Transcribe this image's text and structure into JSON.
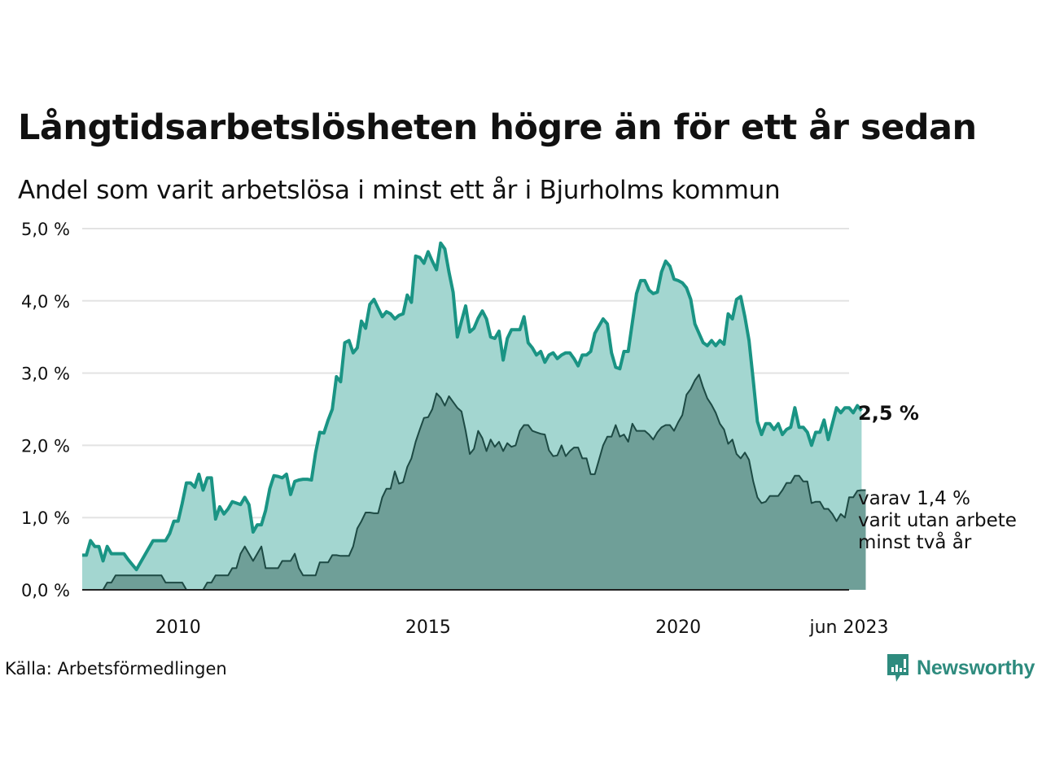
{
  "header": {
    "title": "Långtidsarbetslösheten högre än för ett år sedan",
    "subtitle": "Andel som varit arbetslösa i minst ett år i Bjurholms kommun"
  },
  "footer": {
    "source": "Källa: Arbetsförmedlingen",
    "brand": "Newsworthy",
    "brand_icon": "newsworthy-logo-icon"
  },
  "colors": {
    "series1_line": "#1a9484",
    "series1_fill": "#a3d6d0",
    "series2_line": "#1d4a44",
    "series2_fill": "#6f9f98",
    "grid": "#e3e3e3",
    "brand": "#2e8b7e"
  },
  "chart_data": {
    "type": "area",
    "title": "Långtidsarbetslösheten högre än för ett år sedan",
    "subtitle": "Andel som varit arbetslösa i minst ett år i Bjurholms kommun",
    "xlabel": "",
    "ylabel": "",
    "x_start": "2008-02",
    "x_end": "2023-06",
    "x_frequency": "monthly",
    "ylim": [
      0,
      5
    ],
    "yticks": [
      0,
      1,
      2,
      3,
      4,
      5
    ],
    "ytick_labels": [
      "0,0 %",
      "1,0 %",
      "2,0 %",
      "3,0 %",
      "4,0 %",
      "5,0 %"
    ],
    "xticks": [
      {
        "label": "2010",
        "date": "2010-01"
      },
      {
        "label": "2015",
        "date": "2015-01"
      },
      {
        "label": "2020",
        "date": "2020-01"
      },
      {
        "label": "jun 2023",
        "date": "2023-06"
      }
    ],
    "grid": true,
    "annotations": [
      {
        "text": "2,5 %",
        "series": "Arbetslösa minst ett år",
        "style": "bold"
      },
      {
        "lines": [
          "varav 1,4 %",
          "varit utan arbete",
          "minst två år"
        ],
        "series": "Arbetslösa minst två år"
      }
    ],
    "series": [
      {
        "name": "Arbetslösa minst ett år",
        "values": [
          0.48,
          0.48,
          0.68,
          0.6,
          0.6,
          0.4,
          0.6,
          0.5,
          0.5,
          0.5,
          0.5,
          0.42,
          0.35,
          0.28,
          0.38,
          0.48,
          0.58,
          0.68,
          0.68,
          0.68,
          0.68,
          0.78,
          0.95,
          0.95,
          1.2,
          1.48,
          1.48,
          1.42,
          1.6,
          1.38,
          1.55,
          1.55,
          0.98,
          1.15,
          1.05,
          1.12,
          1.22,
          1.2,
          1.18,
          1.28,
          1.18,
          0.8,
          0.9,
          0.9,
          1.1,
          1.4,
          1.58,
          1.57,
          1.55,
          1.6,
          1.32,
          1.5,
          1.52,
          1.53,
          1.53,
          1.52,
          1.9,
          2.18,
          2.17,
          2.35,
          2.5,
          2.95,
          2.88,
          3.42,
          3.45,
          3.28,
          3.35,
          3.72,
          3.62,
          3.95,
          4.02,
          3.9,
          3.78,
          3.85,
          3.82,
          3.75,
          3.8,
          3.82,
          4.08,
          3.98,
          4.62,
          4.6,
          4.52,
          4.68,
          4.55,
          4.43,
          4.8,
          4.72,
          4.4,
          4.12,
          3.5,
          3.72,
          3.93,
          3.57,
          3.62,
          3.76,
          3.86,
          3.75,
          3.5,
          3.48,
          3.58,
          3.18,
          3.48,
          3.6,
          3.6,
          3.6,
          3.78,
          3.42,
          3.35,
          3.25,
          3.3,
          3.15,
          3.25,
          3.28,
          3.2,
          3.25,
          3.28,
          3.28,
          3.2,
          3.1,
          3.25,
          3.25,
          3.3,
          3.55,
          3.65,
          3.75,
          3.68,
          3.28,
          3.08,
          3.06,
          3.3,
          3.3,
          3.7,
          4.1,
          4.28,
          4.28,
          4.15,
          4.1,
          4.12,
          4.4,
          4.55,
          4.48,
          4.3,
          4.28,
          4.25,
          4.18,
          4.02,
          3.68,
          3.55,
          3.42,
          3.38,
          3.45,
          3.38,
          3.45,
          3.4,
          3.82,
          3.75,
          4.02,
          4.06,
          3.78,
          3.45,
          2.9,
          2.33,
          2.15,
          2.3,
          2.3,
          2.22,
          2.3,
          2.15,
          2.22,
          2.25,
          2.52,
          2.25,
          2.25,
          2.18,
          2.0,
          2.18,
          2.18,
          2.35,
          2.08,
          2.3,
          2.52,
          2.45,
          2.52,
          2.52,
          2.45,
          2.55,
          2.48
        ]
      },
      {
        "name": "Arbetslösa minst två år",
        "values": [
          0,
          0,
          0,
          0,
          0,
          0,
          0.1,
          0.1,
          0.2,
          0.2,
          0.2,
          0.2,
          0.2,
          0.2,
          0.2,
          0.2,
          0.2,
          0.2,
          0.2,
          0.2,
          0.1,
          0.1,
          0.1,
          0.1,
          0.1,
          0,
          0,
          0,
          0,
          0,
          0.1,
          0.1,
          0.2,
          0.2,
          0.2,
          0.2,
          0.3,
          0.3,
          0.5,
          0.6,
          0.5,
          0.4,
          0.5,
          0.6,
          0.3,
          0.3,
          0.3,
          0.3,
          0.4,
          0.4,
          0.4,
          0.5,
          0.3,
          0.2,
          0.2,
          0.2,
          0.2,
          0.38,
          0.38,
          0.38,
          0.48,
          0.48,
          0.47,
          0.47,
          0.47,
          0.6,
          0.85,
          0.95,
          1.07,
          1.07,
          1.06,
          1.06,
          1.28,
          1.4,
          1.4,
          1.64,
          1.47,
          1.49,
          1.7,
          1.82,
          2.05,
          2.22,
          2.38,
          2.39,
          2.5,
          2.72,
          2.66,
          2.55,
          2.68,
          2.6,
          2.52,
          2.47,
          2.2,
          1.88,
          1.95,
          2.2,
          2.1,
          1.92,
          2.08,
          1.98,
          2.05,
          1.92,
          2.03,
          1.98,
          2.0,
          2.2,
          2.28,
          2.28,
          2.2,
          2.18,
          2.16,
          2.15,
          1.93,
          1.85,
          1.86,
          2.0,
          1.85,
          1.92,
          1.97,
          1.97,
          1.82,
          1.82,
          1.6,
          1.6,
          1.8,
          2.0,
          2.12,
          2.12,
          2.28,
          2.12,
          2.15,
          2.05,
          2.3,
          2.2,
          2.2,
          2.2,
          2.15,
          2.08,
          2.18,
          2.25,
          2.28,
          2.28,
          2.2,
          2.32,
          2.42,
          2.7,
          2.78,
          2.9,
          2.98,
          2.8,
          2.65,
          2.56,
          2.45,
          2.3,
          2.22,
          2.02,
          2.08,
          1.88,
          1.82,
          1.9,
          1.8,
          1.5,
          1.28,
          1.2,
          1.22,
          1.3,
          1.3,
          1.3,
          1.38,
          1.48,
          1.48,
          1.58,
          1.58,
          1.5,
          1.5,
          1.2,
          1.22,
          1.22,
          1.12,
          1.12,
          1.05,
          0.95,
          1.05,
          1.0,
          1.28,
          1.28,
          1.37,
          1.38,
          1.38
        ]
      }
    ]
  }
}
